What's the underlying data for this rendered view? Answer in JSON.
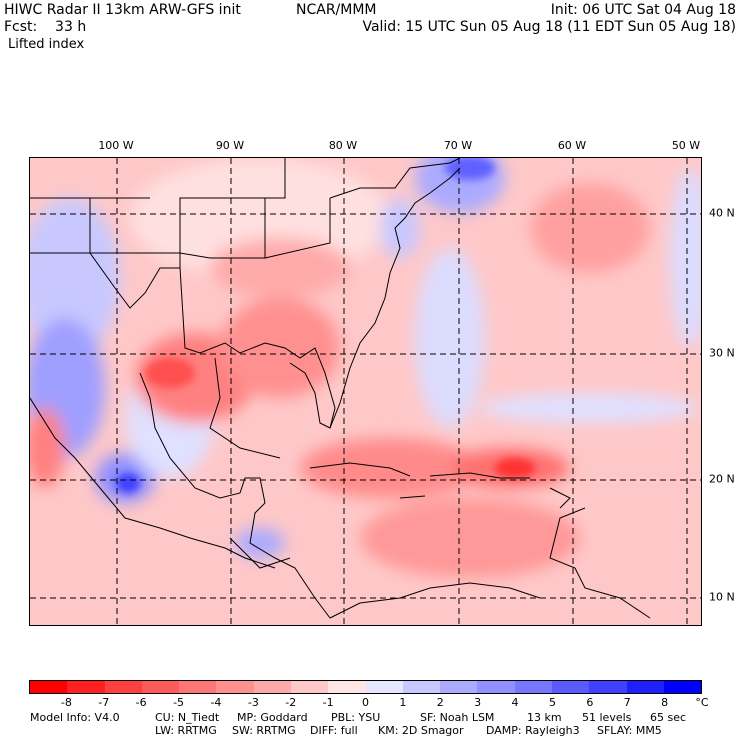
{
  "header": {
    "left_line1": "HIWC Radar II 13km ARW-GFS init",
    "left_line2": "Fcst:    33 h",
    "left_line3": "Lifted index",
    "center_line1": "NCAR/MMM",
    "right_line1": "Init: 06 UTC Sat 04 Aug 18",
    "right_line2": "Valid: 15 UTC Sun 05 Aug 18 (11 EDT Sun 05 Aug 18)"
  },
  "map": {
    "lon_labels": [
      "100 W",
      "90 W",
      "80 W",
      "70 W",
      "60 W",
      "50 W"
    ],
    "lat_labels": [
      "40 N",
      "30 N",
      "20 N",
      "10 N"
    ]
  },
  "colorbar": {
    "unit": "°C",
    "labels": [
      "-8",
      "-7",
      "-6",
      "-5",
      "-4",
      "-3",
      "-2",
      "-1",
      "0",
      "1",
      "2",
      "3",
      "4",
      "5",
      "6",
      "7",
      "8"
    ],
    "colors": [
      "#ff0000",
      "#ff2020",
      "#ff4040",
      "#ff5a5a",
      "#ff7676",
      "#ff9090",
      "#ffaaaa",
      "#ffc8c8",
      "#ffe6e6",
      "#e6e6ff",
      "#c8c8ff",
      "#aaaaff",
      "#9090ff",
      "#7676ff",
      "#5a5aff",
      "#4040ff",
      "#2020ff",
      "#0000ff"
    ]
  },
  "footer": {
    "line1": {
      "model": "Model Info: V4.0",
      "cu": "CU: N_Tiedt",
      "mp": "MP: Goddard",
      "pbl": "PBL: YSU",
      "sf": "SF: Noah LSM",
      "res": "13 km",
      "levels": "51 levels",
      "dt": "65 sec"
    },
    "line2": {
      "lw": "LW: RRTMG",
      "sw": "SW: RRTMG",
      "diff": "DIFF: full",
      "km": "KM: 2D Smagor",
      "damp": "DAMP: Rayleigh3",
      "sflay": "SFLAY: MM5"
    }
  }
}
